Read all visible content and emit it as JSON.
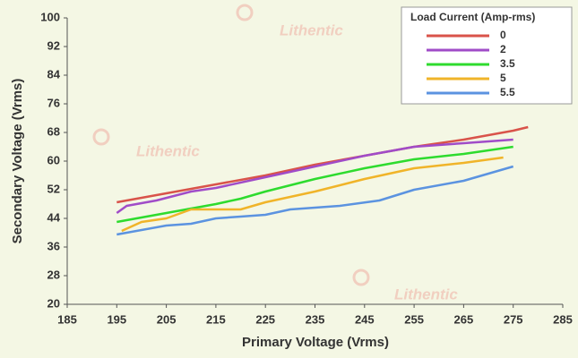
{
  "chart_data": {
    "type": "line",
    "x_label": "Primary Voltage (Vrms)",
    "y_label": "Secondary Voltage (Vrms)",
    "watermark": "Lithentic",
    "legend_title": "Load Current (Amp-rms)",
    "legend_position": "top-right",
    "grid": false,
    "xlim": [
      185,
      285
    ],
    "xticks": [
      185,
      195,
      205,
      215,
      225,
      235,
      245,
      255,
      265,
      275,
      285
    ],
    "ylim": [
      20,
      100
    ],
    "yticks": [
      20,
      28,
      36,
      44,
      52,
      60,
      68,
      76,
      84,
      92,
      100
    ],
    "series": [
      {
        "name": "0",
        "color": "#d9534a",
        "x": [
          195,
          205,
          215,
          225,
          235,
          245,
          255,
          265,
          275,
          278
        ],
        "values": [
          48.5,
          51,
          53.5,
          56,
          59,
          61.5,
          64,
          66,
          68.5,
          69.5
        ]
      },
      {
        "name": "2",
        "color": "#a04cc8",
        "x": [
          195,
          197,
          203,
          210,
          215,
          225,
          235,
          245,
          255,
          265,
          275
        ],
        "values": [
          45.5,
          47.5,
          49,
          51.5,
          52.5,
          55.5,
          58.5,
          61.5,
          64,
          65,
          66
        ]
      },
      {
        "name": "3.5",
        "color": "#2edb2e",
        "x": [
          195,
          205,
          215,
          220,
          225,
          235,
          245,
          255,
          265,
          275
        ],
        "values": [
          43,
          45.5,
          48,
          49.5,
          51.5,
          55,
          58,
          60.5,
          62,
          64
        ]
      },
      {
        "name": "5",
        "color": "#f0b429",
        "x": [
          196,
          200,
          205,
          210,
          220,
          225,
          235,
          245,
          250,
          255,
          265,
          273
        ],
        "values": [
          40.5,
          43,
          44,
          46.5,
          46.5,
          48.5,
          51.5,
          55,
          56.5,
          58,
          59.5,
          61
        ]
      },
      {
        "name": "5.5",
        "color": "#5b93e0",
        "x": [
          195,
          205,
          210,
          215,
          220,
          225,
          230,
          240,
          248,
          255,
          265,
          275
        ],
        "values": [
          39.5,
          42,
          42.5,
          44,
          44.5,
          45,
          46.5,
          47.5,
          49,
          52,
          54.5,
          58.5
        ]
      }
    ]
  }
}
